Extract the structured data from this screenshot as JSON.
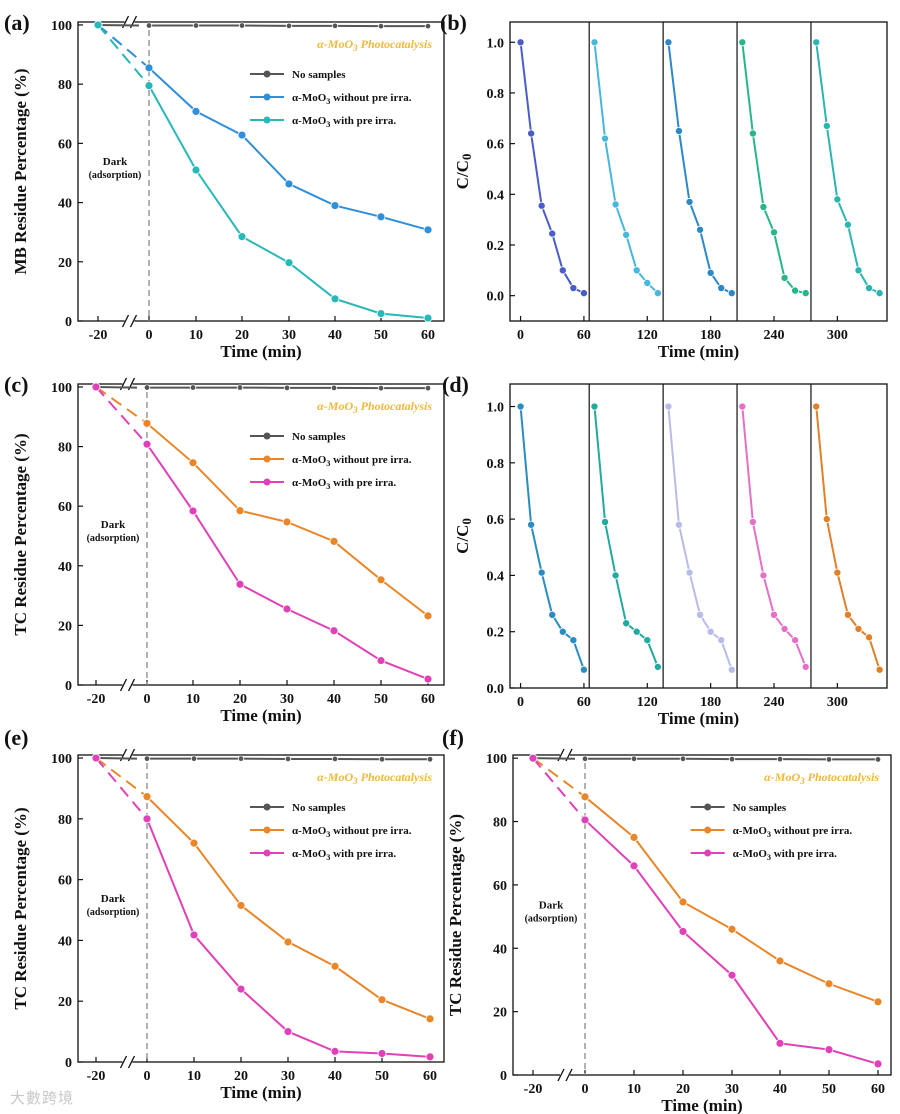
{
  "watermark": "大數跨境",
  "chart_data": [
    {
      "id": "a",
      "type": "line",
      "panel_label": "(a)",
      "title": "α-MoO3 Photocatalysis",
      "xlabel": "Time (min)",
      "ylabel": "MB  Residue Percentage (%)",
      "x_ticks": [
        "-20",
        "0",
        "10",
        "20",
        "30",
        "40",
        "50",
        "60"
      ],
      "x": [
        -20,
        0,
        10,
        20,
        30,
        40,
        50,
        60
      ],
      "y_ticks": [
        0,
        20,
        40,
        60,
        80,
        100
      ],
      "ylim": [
        0,
        101
      ],
      "annotation": [
        "Dark",
        "(adsorption)"
      ],
      "legend_position": "upper-right",
      "series": [
        {
          "name": "No samples",
          "color": "#555555",
          "values": [
            100,
            99.8,
            99.8,
            99.8,
            99.7,
            99.7,
            99.6,
            99.6
          ]
        },
        {
          "name": "α-MoO3 without pre irra.",
          "color": "#2f8fd8",
          "values": [
            100,
            85.5,
            70.8,
            62.8,
            46.3,
            39,
            35.2,
            30.8
          ]
        },
        {
          "name": "α-MoO3 with pre irra.",
          "color": "#27b8b8",
          "values": [
            100,
            79.5,
            51,
            28.5,
            19.7,
            7.5,
            2.5,
            1
          ]
        }
      ]
    },
    {
      "id": "b",
      "type": "line",
      "panel_label": "(b)",
      "xlabel": "Time (min)",
      "ylabel": "C/C0",
      "x_ticks": [
        0,
        60,
        120,
        180,
        240,
        300
      ],
      "y_ticks": [
        "0.0",
        "0.2",
        "0.4",
        "0.6",
        "0.8",
        "1.0"
      ],
      "ylim": [
        -0.1,
        1.08
      ],
      "xlim": [
        -10,
        347
      ],
      "cycles": [
        {
          "color": "#4a5cc8",
          "x": [
            0,
            10,
            20,
            30,
            40,
            50,
            60
          ],
          "values": [
            1.0,
            0.64,
            0.355,
            0.245,
            0.1,
            0.03,
            0.01
          ]
        },
        {
          "color": "#49b6de",
          "x": [
            70,
            80,
            90,
            100,
            110,
            120,
            130
          ],
          "values": [
            1.0,
            0.62,
            0.36,
            0.24,
            0.1,
            0.05,
            0.01
          ]
        },
        {
          "color": "#2c88c8",
          "x": [
            140,
            150,
            160,
            170,
            180,
            190,
            200
          ],
          "values": [
            1.0,
            0.65,
            0.37,
            0.26,
            0.09,
            0.03,
            0.01
          ]
        },
        {
          "color": "#26b68a",
          "x": [
            210,
            220,
            230,
            240,
            250,
            260,
            270
          ],
          "values": [
            1.0,
            0.64,
            0.35,
            0.25,
            0.07,
            0.02,
            0.01
          ]
        },
        {
          "color": "#2bb5b0",
          "x": [
            280,
            290,
            300,
            310,
            320,
            330,
            340
          ],
          "values": [
            1.0,
            0.67,
            0.38,
            0.28,
            0.1,
            0.03,
            0.01
          ]
        }
      ]
    },
    {
      "id": "c",
      "type": "line",
      "panel_label": "(c)",
      "title": "α-MoO3 Photocatalysis",
      "xlabel": "Time (min)",
      "ylabel": "TC  Residue Percentage (%)",
      "x_ticks": [
        "-20",
        "0",
        "10",
        "20",
        "30",
        "40",
        "50",
        "60"
      ],
      "x": [
        -20,
        0,
        10,
        20,
        30,
        40,
        50,
        60
      ],
      "y_ticks": [
        0,
        20,
        40,
        60,
        80,
        100
      ],
      "ylim": [
        0,
        101
      ],
      "annotation": [
        "Dark",
        "(adsorption)"
      ],
      "legend_position": "upper-right",
      "series": [
        {
          "name": "No samples",
          "color": "#555555",
          "values": [
            100,
            99.8,
            99.8,
            99.8,
            99.7,
            99.7,
            99.6,
            99.6
          ]
        },
        {
          "name": "α-MoO3 without pre irra.",
          "color": "#e8862a",
          "values": [
            100,
            87.8,
            74.6,
            58.5,
            54.7,
            48.2,
            35.3,
            23.2
          ]
        },
        {
          "name": "α-MoO3 with pre irra.",
          "color": "#e040b8",
          "values": [
            100,
            80.8,
            58.4,
            33.8,
            25.5,
            18.2,
            8.2,
            2
          ]
        }
      ]
    },
    {
      "id": "d",
      "type": "line",
      "panel_label": "(d)",
      "xlabel": "Time (min)",
      "ylabel": "C/C0",
      "x_ticks": [
        0,
        60,
        120,
        180,
        240,
        300
      ],
      "y_ticks": [
        "0.0",
        "0.2",
        "0.4",
        "0.6",
        "0.8",
        "1.0"
      ],
      "ylim": [
        0,
        1.08
      ],
      "xlim": [
        -10,
        347
      ],
      "cycles": [
        {
          "color": "#2a8cc0",
          "x": [
            0,
            10,
            20,
            30,
            40,
            50,
            60
          ],
          "values": [
            1.0,
            0.58,
            0.41,
            0.26,
            0.2,
            0.17,
            0.065
          ]
        },
        {
          "color": "#22aaa0",
          "x": [
            70,
            80,
            90,
            100,
            110,
            120,
            130
          ],
          "values": [
            1.0,
            0.59,
            0.4,
            0.23,
            0.2,
            0.17,
            0.075
          ]
        },
        {
          "color": "#b8bce8",
          "x": [
            140,
            150,
            160,
            170,
            180,
            190,
            200
          ],
          "values": [
            1.0,
            0.58,
            0.41,
            0.26,
            0.2,
            0.17,
            0.065
          ]
        },
        {
          "color": "#e470c8",
          "x": [
            210,
            220,
            230,
            240,
            250,
            260,
            270
          ],
          "values": [
            1.0,
            0.59,
            0.4,
            0.26,
            0.21,
            0.17,
            0.075
          ]
        },
        {
          "color": "#e0802a",
          "x": [
            280,
            290,
            300,
            310,
            320,
            330,
            340
          ],
          "values": [
            1.0,
            0.6,
            0.41,
            0.26,
            0.21,
            0.18,
            0.065
          ]
        }
      ]
    },
    {
      "id": "e",
      "type": "line",
      "panel_label": "(e)",
      "title": "α-MoO3 Photocatalysis",
      "xlabel": "Time (min)",
      "ylabel": "TC Residue Percentage (%)",
      "x_ticks": [
        "-20",
        "0",
        "10",
        "20",
        "30",
        "40",
        "50",
        "60"
      ],
      "x": [
        -20,
        0,
        10,
        20,
        30,
        40,
        50,
        60
      ],
      "y_ticks": [
        0,
        20,
        40,
        60,
        80,
        100
      ],
      "ylim": [
        0,
        101
      ],
      "annotation": [
        "Dark",
        "(adsorption)"
      ],
      "legend_position": "upper-right",
      "series": [
        {
          "name": "No samples",
          "color": "#555555",
          "values": [
            100,
            99.8,
            99.8,
            99.8,
            99.7,
            99.7,
            99.6,
            99.6
          ]
        },
        {
          "name": "α-MoO3 without pre irra.",
          "color": "#e8862a",
          "values": [
            100,
            87.3,
            72,
            51.5,
            39.5,
            31.5,
            20.5,
            14.2
          ]
        },
        {
          "name": "α-MoO3 with pre irra.",
          "color": "#e040b8",
          "values": [
            100,
            80,
            41.8,
            24,
            10,
            3.5,
            2.8,
            1.7
          ]
        }
      ]
    },
    {
      "id": "f",
      "type": "line",
      "panel_label": "(f)",
      "title": "α-MoO3 Photocatalysis",
      "xlabel": "Time (min)",
      "ylabel": "TC Residue Percentage (%)",
      "x_ticks": [
        "-20",
        "0",
        "10",
        "20",
        "30",
        "40",
        "50",
        "60"
      ],
      "x": [
        -20,
        0,
        10,
        20,
        30,
        40,
        50,
        60
      ],
      "y_ticks": [
        0,
        20,
        40,
        60,
        80,
        100
      ],
      "ylim": [
        0,
        101
      ],
      "annotation": [
        "Dark",
        "(adsorption)"
      ],
      "legend_position": "upper-right",
      "series": [
        {
          "name": "No samples",
          "color": "#555555",
          "values": [
            100,
            99.8,
            99.8,
            99.8,
            99.7,
            99.7,
            99.6,
            99.6
          ]
        },
        {
          "name": "α-MoO3 without pre irra.",
          "color": "#e8862a",
          "values": [
            100,
            87.8,
            75,
            54.6,
            46,
            36,
            28.8,
            23.1
          ]
        },
        {
          "name": "α-MoO3 with pre irra.",
          "color": "#e040b8",
          "values": [
            100,
            80.5,
            66,
            45.3,
            31.5,
            10,
            8,
            3.5
          ]
        }
      ]
    }
  ]
}
